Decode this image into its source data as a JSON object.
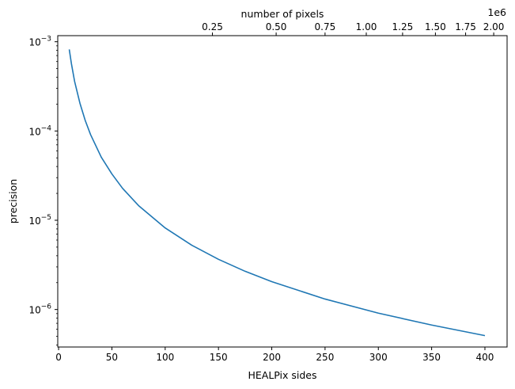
{
  "chart_data": {
    "type": "line",
    "title": "",
    "xlabel": "HEALPix sides",
    "ylabel": "precision",
    "top_xlabel": "number of pixels",
    "top_x_offset_label": "1e6",
    "xlim": [
      -0.8,
      420.8
    ],
    "ylim": [
      3.8e-07,
      0.00117
    ],
    "yscale": "log",
    "grid": false,
    "x_ticks": [
      0,
      50,
      100,
      150,
      200,
      250,
      300,
      350,
      400
    ],
    "x_tick_labels": [
      "0",
      "50",
      "100",
      "150",
      "200",
      "250",
      "300",
      "350",
      "400"
    ],
    "y_major_ticks": [
      {
        "value": 1e-06,
        "base": "10",
        "exp": "−6"
      },
      {
        "value": 1e-05,
        "base": "10",
        "exp": "−5"
      },
      {
        "value": 0.0001,
        "base": "10",
        "exp": "−4"
      },
      {
        "value": 0.001,
        "base": "10",
        "exp": "−3"
      }
    ],
    "top_x_ticks": [
      0.25,
      0.5,
      0.75,
      1.0,
      1.25,
      1.5,
      1.75,
      2.0
    ],
    "top_x_tick_labels": [
      "0.25",
      "0.50",
      "0.75",
      "1.00",
      "1.25",
      "1.50",
      "1.75",
      "2.00"
    ],
    "series": [
      {
        "color": "#1f77b4",
        "x": [
          10,
          12,
          15,
          20,
          25,
          30,
          40,
          50,
          60,
          75,
          100,
          125,
          150,
          175,
          200,
          250,
          300,
          350,
          400
        ],
        "y": [
          0.00082,
          0.00057,
          0.00036,
          0.000205,
          0.000131,
          9.1e-05,
          5.1e-05,
          3.3e-05,
          2.28e-05,
          1.46e-05,
          8.2e-06,
          5.25e-06,
          3.65e-06,
          2.68e-06,
          2.05e-06,
          1.31e-06,
          9.1e-07,
          6.7e-07,
          5.1e-07
        ]
      }
    ]
  }
}
